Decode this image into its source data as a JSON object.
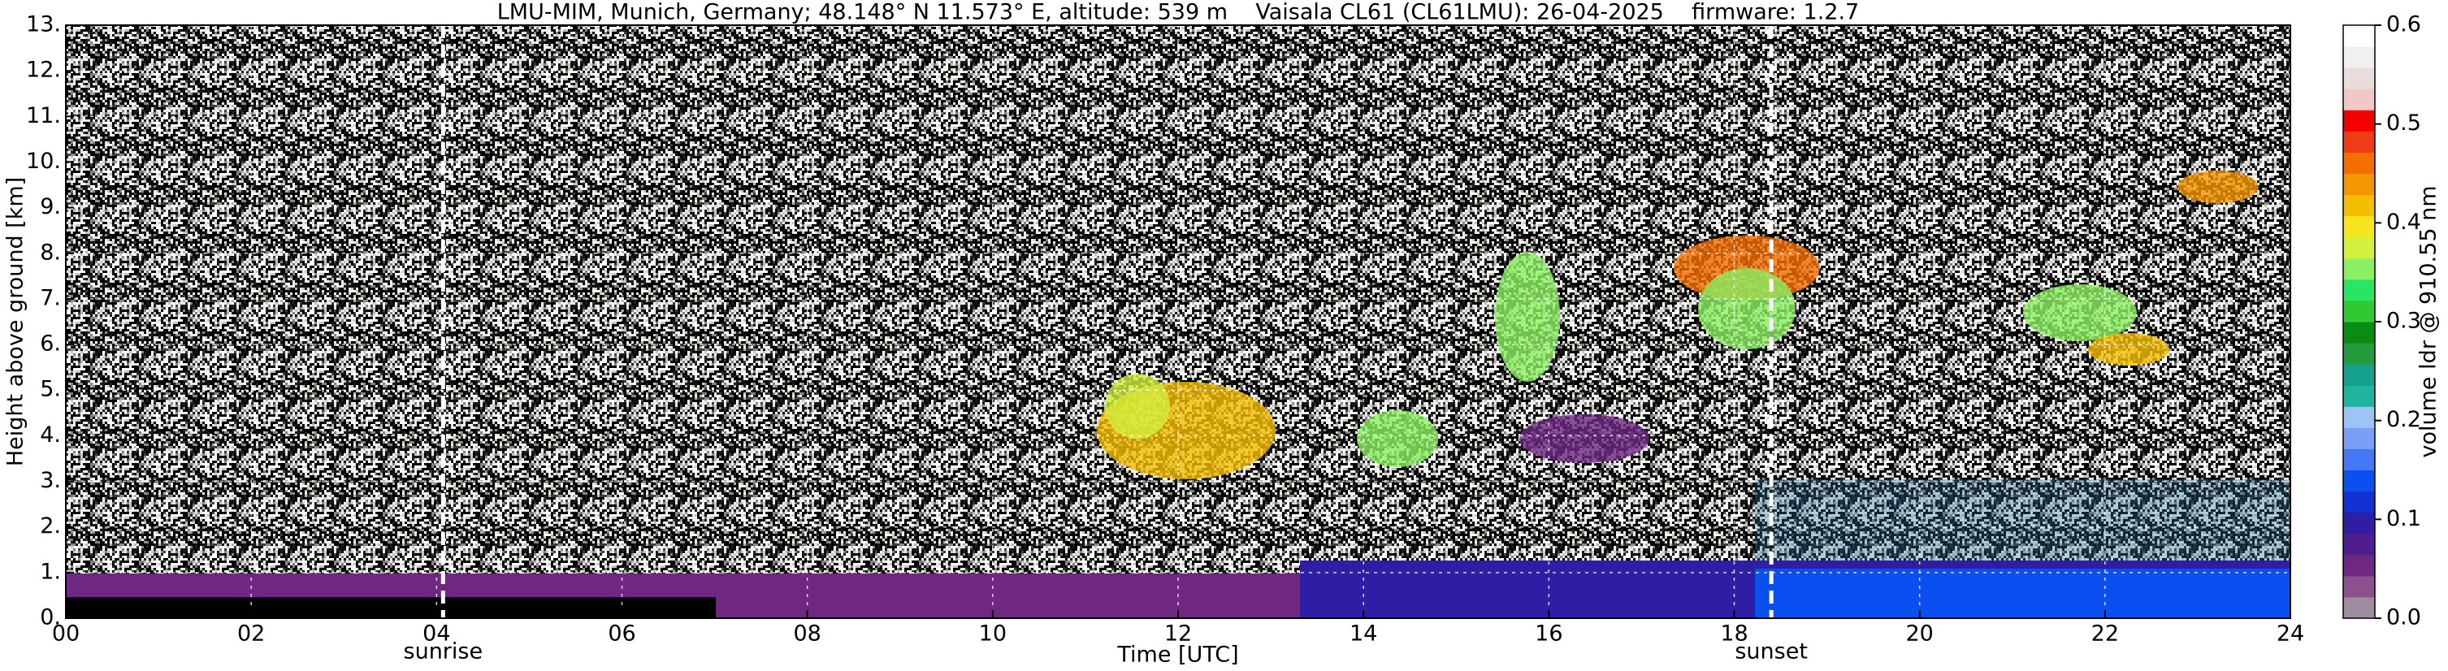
{
  "chart_data": {
    "type": "heatmap",
    "title": "LMU-MIM, Munich, Germany; 48.148° N 11.573° E, altitude: 539 m    Vaisala CL61 (CL61LMU): 26-04-2025    firmware: 1.2.7",
    "xlabel": "Time [UTC]",
    "ylabel": "Height above ground [km]",
    "xlim": [
      0,
      24
    ],
    "xticks": [
      {
        "value": 0,
        "label": "00"
      },
      {
        "value": 2,
        "label": "02"
      },
      {
        "value": 4,
        "label": "04"
      },
      {
        "value": 6,
        "label": "06"
      },
      {
        "value": 8,
        "label": "08"
      },
      10,
      12,
      14,
      16,
      18,
      20,
      22,
      24
    ],
    "ylim": [
      0,
      13
    ],
    "yticks": [
      {
        "value": 0,
        "label": "0."
      },
      {
        "value": 1,
        "label": "1."
      },
      {
        "value": 2,
        "label": "2."
      },
      {
        "value": 3,
        "label": "3."
      },
      {
        "value": 4,
        "label": "4."
      },
      {
        "value": 5,
        "label": "5."
      },
      {
        "value": 6,
        "label": "6."
      },
      {
        "value": 7,
        "label": "7."
      },
      {
        "value": 8,
        "label": "8."
      },
      {
        "value": 9,
        "label": "9."
      },
      {
        "value": 10,
        "label": "10."
      },
      {
        "value": 11,
        "label": "11."
      },
      {
        "value": 12,
        "label": "12."
      },
      {
        "value": 13,
        "label": "13."
      }
    ],
    "grid": true,
    "colorbar": {
      "label": "volume ldr @ 910.55 nm",
      "lim": [
        0,
        0.6
      ],
      "ticks": [
        {
          "value": 0,
          "label": "0.0"
        },
        0.1,
        0.2,
        0.3,
        0.4,
        0.5,
        0.6
      ],
      "colors": [
        "#a08ca0",
        "#8c508c",
        "#6e2882",
        "#501e8c",
        "#2d1ea5",
        "#1432d2",
        "#0a50f0",
        "#4678f5",
        "#78a0f5",
        "#a0c3f5",
        "#1eb4a0",
        "#14a08c",
        "#229b3c",
        "#0a8c14",
        "#32c832",
        "#28e664",
        "#8cf064",
        "#d2f03c",
        "#f5e61e",
        "#f5be00",
        "#f59600",
        "#f56e00",
        "#f03c14",
        "#f50000",
        "#f0c8c8",
        "#e8dcdc",
        "#f2f0f0",
        "#ffffff"
      ]
    },
    "annotations": [
      {
        "text": "sunrise",
        "x": 4.07
      },
      {
        "text": "sunset",
        "x": 18.4
      }
    ]
  }
}
